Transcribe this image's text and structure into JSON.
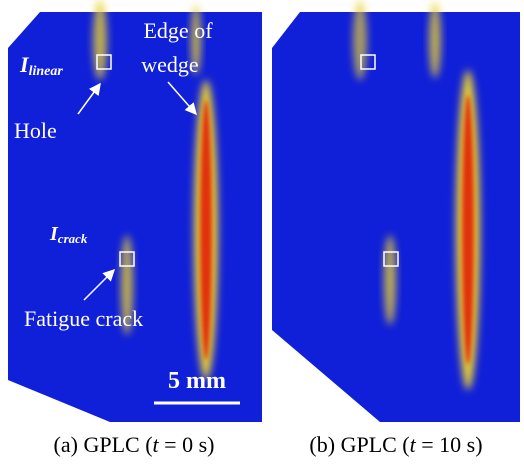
{
  "panels": [
    {
      "caption": {
        "label": "(a) GPLC (",
        "variable": "t",
        "condition": "= 0 s)"
      }
    },
    {
      "caption": {
        "label": "(b) GPLC (",
        "variable": "t",
        "condition": "= 10 s)"
      }
    }
  ],
  "annotations": {
    "i_linear": {
      "symbol": "I",
      "subscript": "linear"
    },
    "hole": "Hole",
    "edge": {
      "line1": "Edge of",
      "line2": "wedge"
    },
    "i_crack": {
      "symbol": "I",
      "subscript": "crack"
    },
    "crack": "Fatigue crack",
    "scale": "5 mm"
  }
}
